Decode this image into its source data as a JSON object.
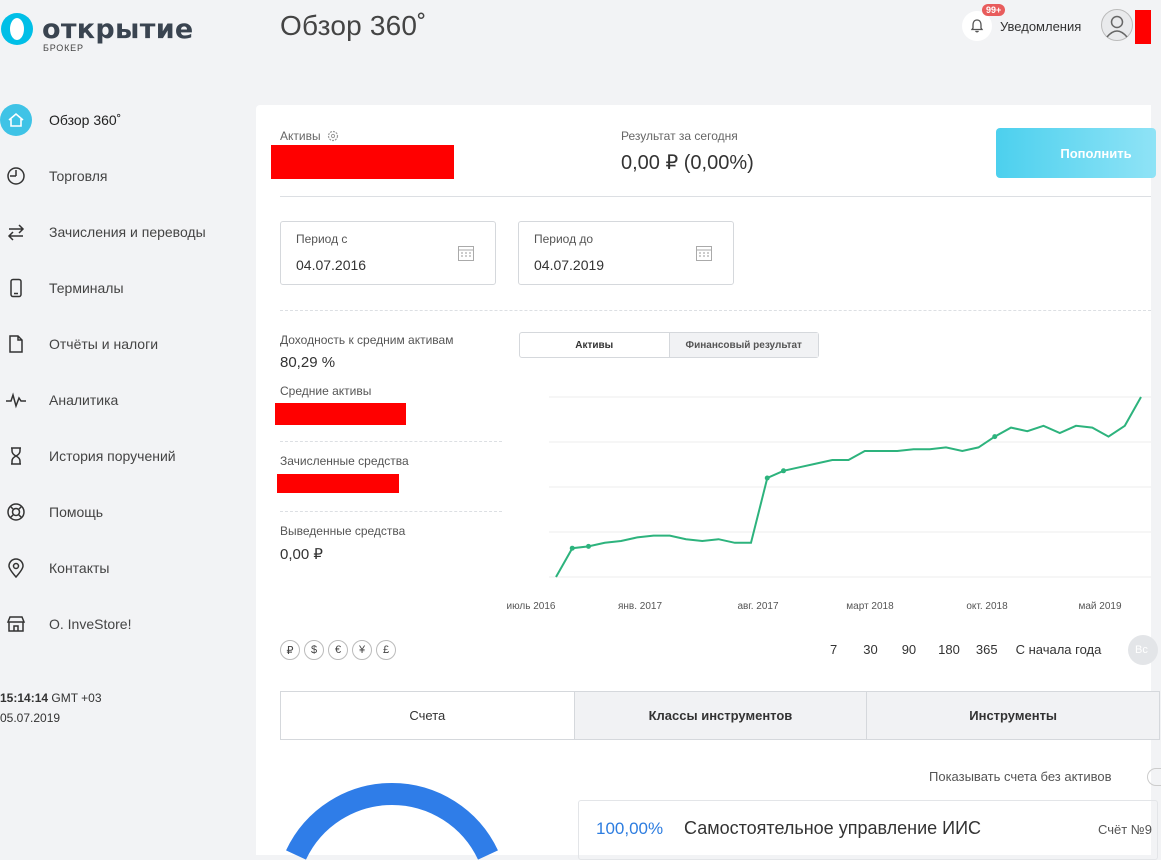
{
  "brand": {
    "name": "открытие",
    "sub": "БРОКЕР",
    "accent": "#00bfe7"
  },
  "header": {
    "title": "Обзор 360˚",
    "notifications_label": "Уведомления",
    "notifications_badge": "99+"
  },
  "sidebar": {
    "items": [
      {
        "label": "Обзор 360˚",
        "icon": "home-icon",
        "active": true
      },
      {
        "label": "Торговля",
        "icon": "clock-icon"
      },
      {
        "label": "Зачисления и переводы",
        "icon": "transfer-arrows-icon"
      },
      {
        "label": "Терминалы",
        "icon": "phone-icon"
      },
      {
        "label": "Отчёты и налоги",
        "icon": "document-icon"
      },
      {
        "label": "Аналитика",
        "icon": "pulse-icon"
      },
      {
        "label": "История поручений",
        "icon": "hourglass-icon"
      },
      {
        "label": "Помощь",
        "icon": "lifebuoy-icon"
      },
      {
        "label": "Контакты",
        "icon": "map-pin-icon"
      },
      {
        "label": "О. InveStore!",
        "icon": "store-icon"
      }
    ]
  },
  "clock": {
    "time": "15:14:14",
    "tz": " GMT +03",
    "date": "05.07.2019"
  },
  "summary": {
    "assets_label": "Активы",
    "today_label": "Результат за сегодня",
    "today_value": "0,00 ₽  (0,00%)",
    "topup_label": "Пополнить"
  },
  "filters": {
    "from_label": "Период с",
    "from_value": "04.07.2016",
    "to_label": "Период до",
    "to_value": "04.07.2019"
  },
  "stats": {
    "yield_label": "Доходность к средним активам",
    "yield_value": "80,29 %",
    "avg_assets_label": "Средние активы",
    "deposited_label": "Зачисленные средства",
    "withdrawn_label": "Выведенные средства",
    "withdrawn_value": "0,00 ₽"
  },
  "chart_toggle": {
    "assets": "Активы",
    "financial": "Финансовый результат"
  },
  "chart_data": {
    "type": "line",
    "x_ticks": [
      "июль 2016",
      "янв. 2017",
      "авг. 2017",
      "март 2018",
      "окт. 2018",
      "май 2019"
    ],
    "x": [
      "2016-07",
      "2016-08",
      "2016-09",
      "2016-10",
      "2016-11",
      "2016-12",
      "2017-01",
      "2017-02",
      "2017-03",
      "2017-04",
      "2017-05",
      "2017-06",
      "2017-07",
      "2017-08",
      "2017-09",
      "2017-10",
      "2017-11",
      "2017-12",
      "2018-01",
      "2018-02",
      "2018-03",
      "2018-04",
      "2018-05",
      "2018-06",
      "2018-07",
      "2018-08",
      "2018-09",
      "2018-10",
      "2018-11",
      "2018-12",
      "2019-01",
      "2019-02",
      "2019-03",
      "2019-04",
      "2019-05",
      "2019-06",
      "2019-07"
    ],
    "values": [
      0.0,
      0.16,
      0.17,
      0.19,
      0.2,
      0.22,
      0.23,
      0.23,
      0.21,
      0.2,
      0.21,
      0.19,
      0.19,
      0.55,
      0.59,
      0.61,
      0.63,
      0.65,
      0.65,
      0.7,
      0.7,
      0.7,
      0.71,
      0.71,
      0.72,
      0.7,
      0.72,
      0.78,
      0.83,
      0.81,
      0.84,
      0.8,
      0.84,
      0.83,
      0.78,
      0.84,
      1.0
    ],
    "ylim": [
      0,
      1.0
    ],
    "grid": true,
    "color": "#2db37d"
  },
  "currencies": [
    "₽",
    "$",
    "€",
    "¥",
    "£"
  ],
  "periods": [
    "7",
    "30",
    "90",
    "180",
    "365",
    "С начала года"
  ],
  "period_all": "Вс",
  "tabs": [
    "Счета",
    "Классы инструментов",
    "Инструменты"
  ],
  "accounts": {
    "show_empty_label": "Показывать счета без активов",
    "items": [
      {
        "pct": "100,00%",
        "name": "Самостоятельное управление ИИС",
        "num": "Счёт №9"
      }
    ]
  }
}
